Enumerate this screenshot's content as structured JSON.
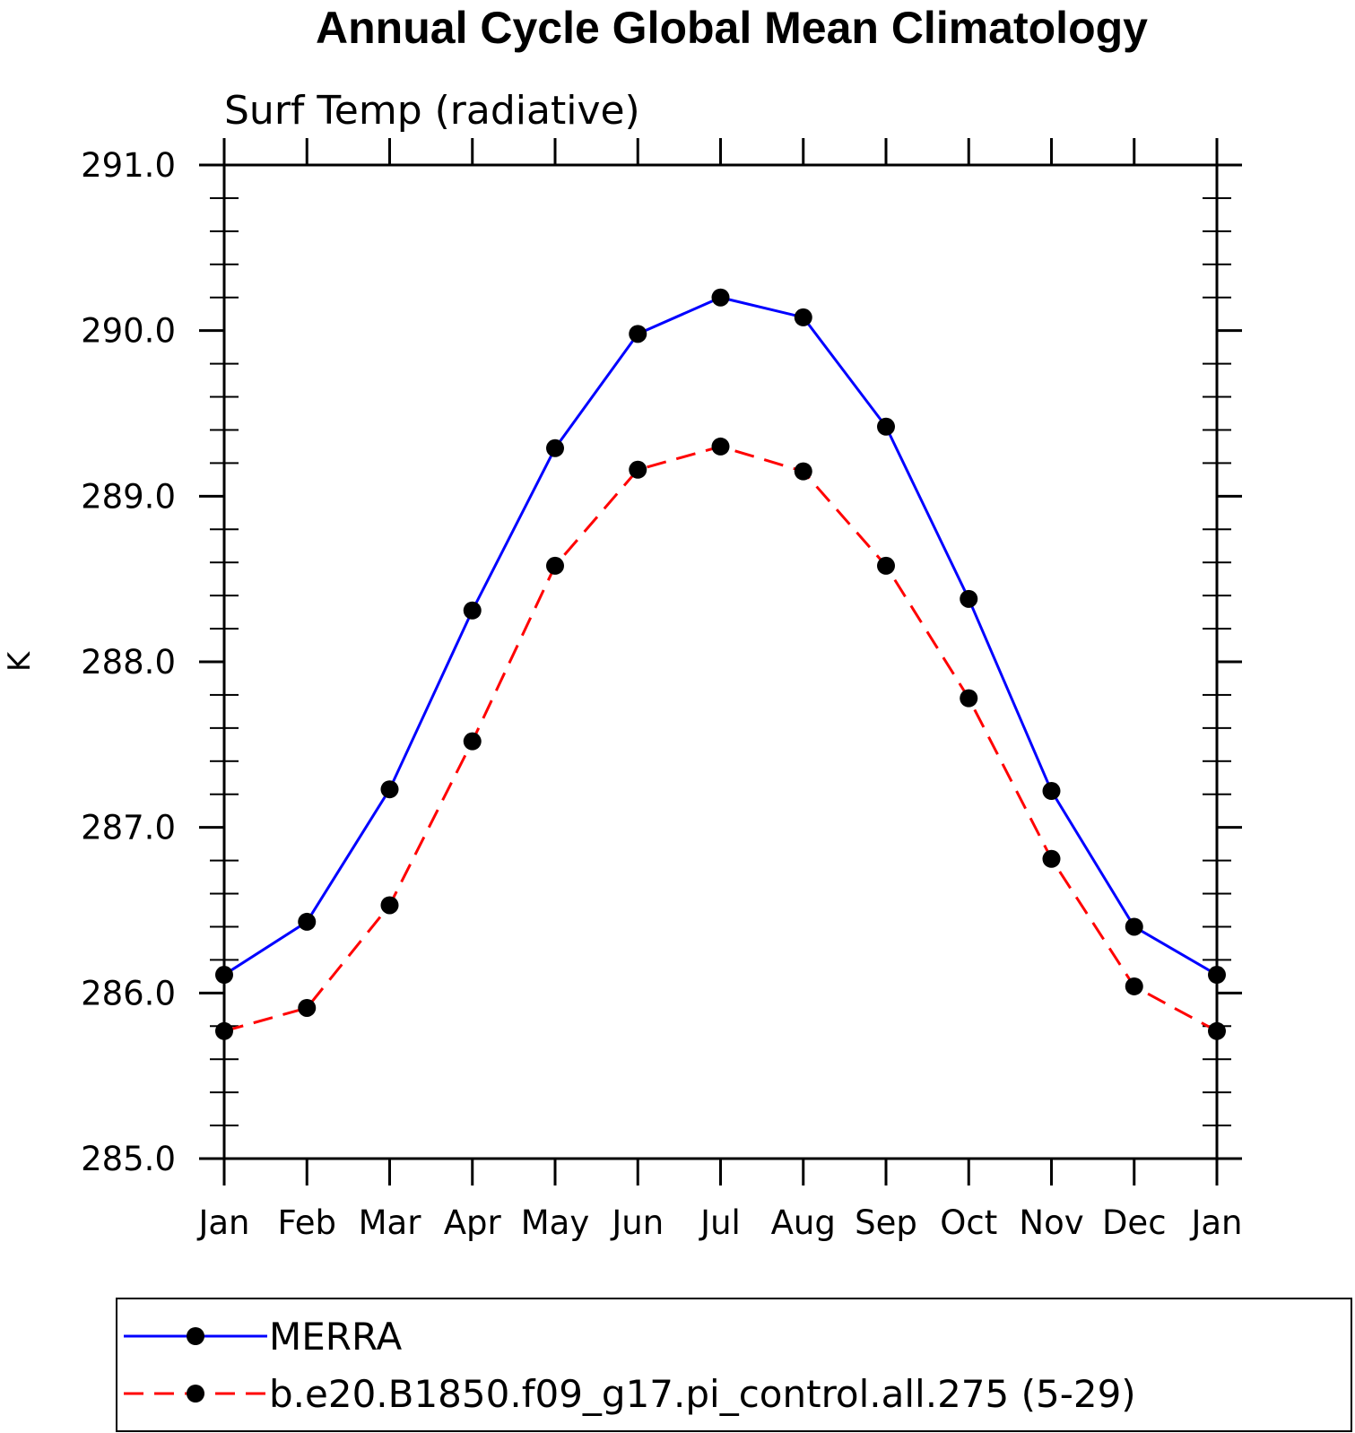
{
  "chart_data": {
    "type": "line",
    "title": "Annual Cycle Global Mean Climatology",
    "subtitle": "Surf Temp (radiative)",
    "xlabel": "",
    "ylabel": "K",
    "categories": [
      "Jan",
      "Feb",
      "Mar",
      "Apr",
      "May",
      "Jun",
      "Jul",
      "Aug",
      "Sep",
      "Oct",
      "Nov",
      "Dec",
      "Jan"
    ],
    "ylim": [
      285.0,
      291.0
    ],
    "yticks": [
      "285.0",
      "286.0",
      "287.0",
      "288.0",
      "289.0",
      "290.0",
      "291.0"
    ],
    "grid": false,
    "legend_position": "bottom",
    "series": [
      {
        "name": "MERRA",
        "color": "#0000ff",
        "line_style": "solid",
        "marker": "filled-circle",
        "values": [
          286.11,
          286.43,
          287.23,
          288.31,
          289.29,
          289.98,
          290.2,
          290.08,
          289.42,
          288.38,
          287.22,
          286.4,
          286.11
        ]
      },
      {
        "name": "b.e20.B1850.f09_g17.pi_control.all.275 (5-29)",
        "color": "#ff0000",
        "line_style": "dashed",
        "marker": "filled-circle",
        "values": [
          285.77,
          285.91,
          286.53,
          287.52,
          288.58,
          289.16,
          289.3,
          289.15,
          288.58,
          287.78,
          286.81,
          286.04,
          285.77
        ]
      }
    ]
  }
}
